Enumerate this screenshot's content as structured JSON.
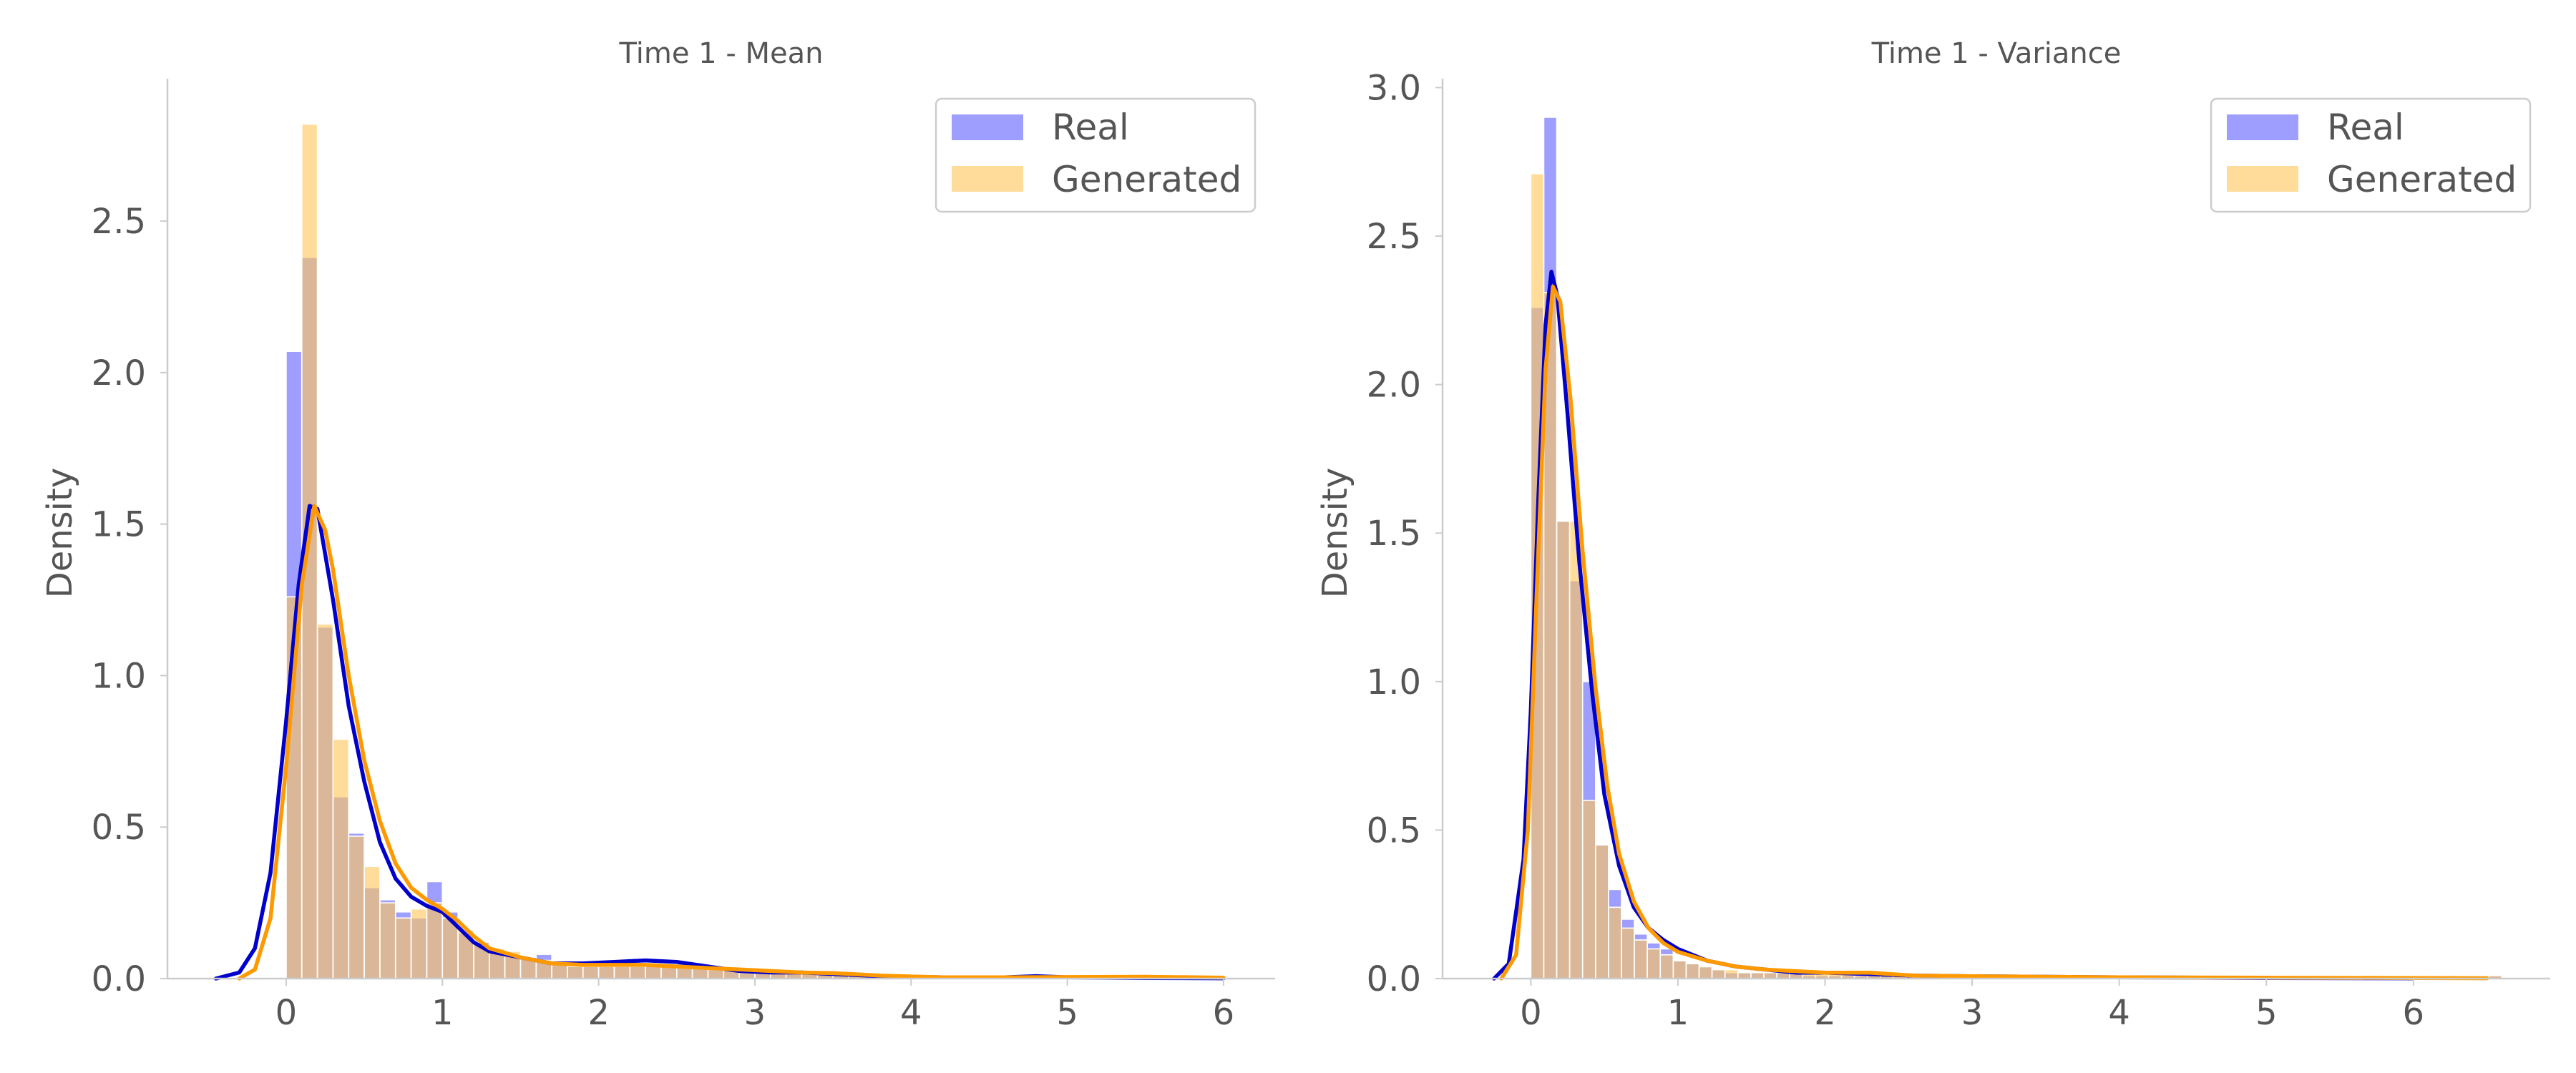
{
  "chart_data": [
    {
      "type": "bar",
      "title": "Time 1 - Mean",
      "xlabel": "",
      "ylabel": "Density",
      "xlim": [
        -0.76,
        6.33
      ],
      "ylim": [
        0,
        2.97
      ],
      "xticks": [
        "0",
        "1",
        "2",
        "3",
        "4",
        "5",
        "6"
      ],
      "xtick_values": [
        0,
        1,
        2,
        3,
        4,
        5,
        6
      ],
      "yticks": [
        "0.0",
        "0.5",
        "1.0",
        "1.5",
        "2.0",
        "2.5"
      ],
      "ytick_values": [
        0,
        0.5,
        1.0,
        1.5,
        2.0,
        2.5
      ],
      "grid": false,
      "legend": {
        "position": "top-right",
        "entries": [
          "Real",
          "Generated"
        ]
      },
      "bin_start": 0,
      "bin_width": 0.1,
      "series": [
        {
          "name": "Real",
          "color": "#6a6aff",
          "opacity": 0.65,
          "histogram": [
            2.07,
            2.38,
            1.16,
            0.6,
            0.48,
            0.3,
            0.26,
            0.22,
            0.2,
            0.32,
            0.22,
            0.15,
            0.12,
            0.09,
            0.08,
            0.07,
            0.08,
            0.05,
            0.04,
            0.04,
            0.04,
            0.04,
            0.04,
            0.05,
            0.04,
            0.05,
            0.04,
            0.03,
            0.03,
            0.02,
            0.02,
            0.02,
            0.02,
            0.02,
            0.02,
            0.02,
            0.01,
            0.01,
            0.01,
            0.01,
            0.01,
            0.01,
            0.01,
            0.01,
            0.01,
            0.01,
            0.01,
            0.01,
            0.01,
            0.01,
            0.01,
            0.01,
            0.01,
            0.01,
            0.01,
            0.01,
            0.01,
            0.01,
            0.01
          ],
          "kde_color": "#0000cc",
          "kde": [
            [
              -0.45,
              0.0
            ],
            [
              -0.3,
              0.02
            ],
            [
              -0.2,
              0.1
            ],
            [
              -0.1,
              0.35
            ],
            [
              0.0,
              0.85
            ],
            [
              0.08,
              1.3
            ],
            [
              0.15,
              1.56
            ],
            [
              0.2,
              1.55
            ],
            [
              0.3,
              1.25
            ],
            [
              0.4,
              0.9
            ],
            [
              0.5,
              0.65
            ],
            [
              0.6,
              0.45
            ],
            [
              0.7,
              0.33
            ],
            [
              0.8,
              0.27
            ],
            [
              0.9,
              0.24
            ],
            [
              1.0,
              0.22
            ],
            [
              1.1,
              0.17
            ],
            [
              1.2,
              0.12
            ],
            [
              1.3,
              0.09
            ],
            [
              1.5,
              0.07
            ],
            [
              1.7,
              0.05
            ],
            [
              1.9,
              0.05
            ],
            [
              2.1,
              0.055
            ],
            [
              2.3,
              0.06
            ],
            [
              2.5,
              0.055
            ],
            [
              2.7,
              0.04
            ],
            [
              2.9,
              0.025
            ],
            [
              3.1,
              0.02
            ],
            [
              3.3,
              0.02
            ],
            [
              3.5,
              0.015
            ],
            [
              3.8,
              0.008
            ],
            [
              4.2,
              0.004
            ],
            [
              4.6,
              0.004
            ],
            [
              4.8,
              0.008
            ],
            [
              5.0,
              0.004
            ],
            [
              5.5,
              0.002
            ],
            [
              6.0,
              0.001
            ]
          ]
        },
        {
          "name": "Generated",
          "color": "#ffc65a",
          "opacity": 0.62,
          "histogram": [
            1.26,
            2.82,
            1.17,
            0.79,
            0.47,
            0.37,
            0.25,
            0.2,
            0.23,
            0.25,
            0.2,
            0.16,
            0.12,
            0.1,
            0.09,
            0.07,
            0.06,
            0.05,
            0.04,
            0.04,
            0.04,
            0.04,
            0.04,
            0.04,
            0.04,
            0.04,
            0.04,
            0.03,
            0.03,
            0.02,
            0.02,
            0.02,
            0.02,
            0.02,
            0.02,
            0.02,
            0.01,
            0.01,
            0.01,
            0.01,
            0.01,
            0.01,
            0.01,
            0.01,
            0.01,
            0.01,
            0.01,
            0.01,
            0.01,
            0.01,
            0.01,
            0.01,
            0.01,
            0.01,
            0.01,
            0.01,
            0.01,
            0.01
          ],
          "kde_color": "#ff9900",
          "kde": [
            [
              -0.3,
              0.0
            ],
            [
              -0.2,
              0.03
            ],
            [
              -0.1,
              0.2
            ],
            [
              0.0,
              0.7
            ],
            [
              0.1,
              1.3
            ],
            [
              0.18,
              1.56
            ],
            [
              0.25,
              1.48
            ],
            [
              0.3,
              1.35
            ],
            [
              0.4,
              1.0
            ],
            [
              0.5,
              0.72
            ],
            [
              0.6,
              0.52
            ],
            [
              0.7,
              0.38
            ],
            [
              0.8,
              0.3
            ],
            [
              0.9,
              0.26
            ],
            [
              1.0,
              0.23
            ],
            [
              1.1,
              0.19
            ],
            [
              1.2,
              0.14
            ],
            [
              1.3,
              0.1
            ],
            [
              1.5,
              0.07
            ],
            [
              1.7,
              0.05
            ],
            [
              1.9,
              0.045
            ],
            [
              2.1,
              0.045
            ],
            [
              2.3,
              0.045
            ],
            [
              2.5,
              0.04
            ],
            [
              2.7,
              0.035
            ],
            [
              2.9,
              0.03
            ],
            [
              3.1,
              0.025
            ],
            [
              3.3,
              0.02
            ],
            [
              3.5,
              0.018
            ],
            [
              3.8,
              0.01
            ],
            [
              4.2,
              0.004
            ],
            [
              4.6,
              0.004
            ],
            [
              5.0,
              0.005
            ],
            [
              5.5,
              0.006
            ],
            [
              6.0,
              0.003
            ]
          ]
        }
      ]
    },
    {
      "type": "bar",
      "title": "Time 1 - Variance",
      "xlabel": "",
      "ylabel": "Density",
      "xlim": [
        -0.6,
        6.93
      ],
      "ylim": [
        0,
        3.03
      ],
      "xticks": [
        "0",
        "1",
        "2",
        "3",
        "4",
        "5",
        "6"
      ],
      "xtick_values": [
        0,
        1,
        2,
        3,
        4,
        5,
        6
      ],
      "yticks": [
        "0.0",
        "0.5",
        "1.0",
        "1.5",
        "2.0",
        "2.5",
        "3.0"
      ],
      "ytick_values": [
        0,
        0.5,
        1.0,
        1.5,
        2.0,
        2.5,
        3.0
      ],
      "grid": false,
      "legend": {
        "position": "top-right",
        "entries": [
          "Real",
          "Generated"
        ]
      },
      "bin_start": 0,
      "bin_width": 0.088,
      "series": [
        {
          "name": "Real",
          "color": "#6a6aff",
          "opacity": 0.65,
          "histogram": [
            2.26,
            2.9,
            1.54,
            1.34,
            1.0,
            0.45,
            0.3,
            0.2,
            0.15,
            0.12,
            0.1,
            0.06,
            0.05,
            0.04,
            0.03,
            0.02,
            0.02,
            0.02,
            0.02,
            0.02,
            0.02,
            0.01,
            0.01,
            0.01,
            0.01,
            0.01,
            0.01,
            0.01,
            0.01,
            0.01,
            0.01,
            0.01,
            0.01,
            0.01,
            0.01,
            0.01,
            0.01,
            0.01,
            0.01,
            0.01,
            0.01,
            0.01,
            0.01,
            0.01,
            0.01,
            0.01,
            0.01,
            0.01,
            0.01,
            0.01,
            0.01,
            0.01,
            0.01,
            0.01,
            0.01,
            0.01,
            0.01,
            0.01,
            0.01,
            0.01,
            0.01,
            0.01,
            0.01,
            0.01,
            0.01,
            0.01,
            0.01,
            0.01,
            0.01,
            0.01,
            0.01,
            0.01,
            0.01,
            0.01,
            0.01
          ],
          "kde_color": "#0000cc",
          "kde": [
            [
              -0.25,
              0.0
            ],
            [
              -0.15,
              0.05
            ],
            [
              -0.05,
              0.4
            ],
            [
              0.0,
              0.9
            ],
            [
              0.05,
              1.6
            ],
            [
              0.1,
              2.2
            ],
            [
              0.14,
              2.38
            ],
            [
              0.18,
              2.3
            ],
            [
              0.25,
              1.9
            ],
            [
              0.33,
              1.4
            ],
            [
              0.42,
              0.95
            ],
            [
              0.5,
              0.62
            ],
            [
              0.6,
              0.38
            ],
            [
              0.7,
              0.24
            ],
            [
              0.8,
              0.17
            ],
            [
              0.9,
              0.13
            ],
            [
              1.0,
              0.1
            ],
            [
              1.1,
              0.08
            ],
            [
              1.2,
              0.06
            ],
            [
              1.4,
              0.04
            ],
            [
              1.6,
              0.03
            ],
            [
              1.8,
              0.02
            ],
            [
              2.0,
              0.02
            ],
            [
              2.3,
              0.015
            ],
            [
              2.6,
              0.01
            ],
            [
              3.0,
              0.008
            ],
            [
              3.5,
              0.006
            ],
            [
              4.0,
              0.004
            ],
            [
              5.0,
              0.002
            ],
            [
              6.0,
              0.001
            ]
          ]
        },
        {
          "name": "Generated",
          "color": "#ffc65a",
          "opacity": 0.62,
          "histogram": [
            2.71,
            2.31,
            1.54,
            1.54,
            0.6,
            0.45,
            0.24,
            0.17,
            0.13,
            0.1,
            0.08,
            0.06,
            0.05,
            0.04,
            0.03,
            0.03,
            0.02,
            0.02,
            0.02,
            0.02,
            0.02,
            0.02,
            0.02,
            0.02,
            0.02,
            0.01,
            0.01,
            0.01,
            0.01,
            0.01,
            0.01,
            0.01,
            0.01,
            0.01,
            0.01,
            0.01,
            0.01,
            0.01,
            0.01,
            0.01,
            0.01,
            0.01,
            0.01,
            0.01,
            0.01,
            0.01,
            0.01,
            0.01,
            0.01,
            0.01,
            0.01,
            0.01,
            0.01,
            0.01,
            0.01,
            0.01,
            0.01,
            0.01,
            0.01,
            0.01,
            0.01,
            0.01,
            0.01,
            0.01,
            0.01,
            0.01,
            0.01,
            0.01,
            0.01,
            0.01,
            0.01,
            0.01,
            0.01,
            0.01,
            0.01
          ],
          "kde_color": "#ff9900",
          "kde": [
            [
              -0.2,
              0.0
            ],
            [
              -0.1,
              0.08
            ],
            [
              -0.02,
              0.5
            ],
            [
              0.04,
              1.3
            ],
            [
              0.1,
              2.05
            ],
            [
              0.15,
              2.33
            ],
            [
              0.2,
              2.28
            ],
            [
              0.27,
              1.95
            ],
            [
              0.35,
              1.45
            ],
            [
              0.44,
              0.98
            ],
            [
              0.52,
              0.65
            ],
            [
              0.6,
              0.42
            ],
            [
              0.7,
              0.26
            ],
            [
              0.8,
              0.17
            ],
            [
              0.9,
              0.12
            ],
            [
              1.0,
              0.09
            ],
            [
              1.2,
              0.06
            ],
            [
              1.4,
              0.04
            ],
            [
              1.6,
              0.03
            ],
            [
              1.8,
              0.025
            ],
            [
              2.0,
              0.02
            ],
            [
              2.3,
              0.02
            ],
            [
              2.6,
              0.01
            ],
            [
              3.0,
              0.008
            ],
            [
              3.5,
              0.006
            ],
            [
              4.0,
              0.004
            ],
            [
              5.0,
              0.003
            ],
            [
              6.0,
              0.002
            ],
            [
              6.5,
              0.001
            ]
          ]
        }
      ]
    }
  ]
}
